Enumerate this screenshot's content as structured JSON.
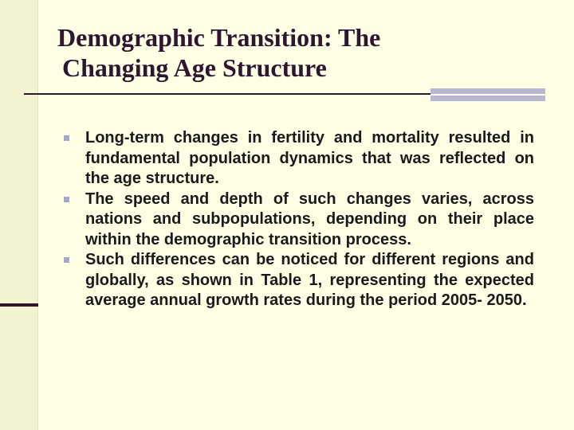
{
  "slide": {
    "title_line_1": "Demographic Transition: The",
    "title_line_2": "Changing Age Structure",
    "bullets": [
      "Long-term changes in fertility and mortality resulted in fundamental population dynamics that was reflected on the age structure.",
      "The speed and depth of such changes varies, across nations and subpopulations, depending on their place within the demographic transition process.",
      "Such differences can be noticed for different regions and globally, as shown in Table 1, representing the expected average annual growth rates during the period 2005- 2050."
    ]
  },
  "colors": {
    "background": "#FFFFE5",
    "title": "#2E1530",
    "accent_light": "#B7B7D2",
    "bullet_marker": "#A8A8C4"
  }
}
